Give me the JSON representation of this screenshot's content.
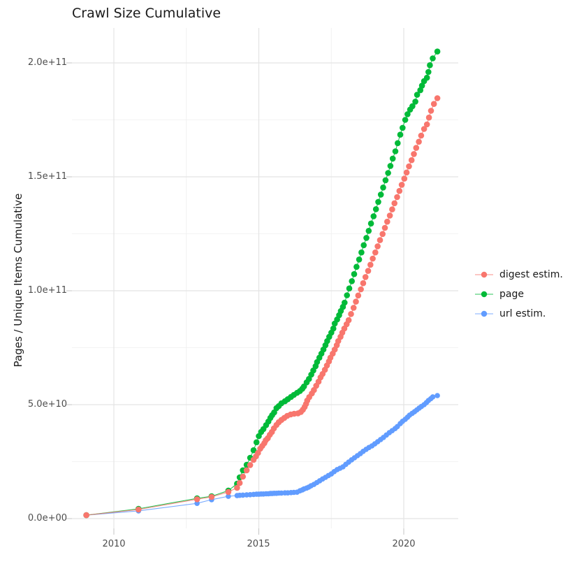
{
  "title": "Crawl Size Cumulative",
  "y_axis": {
    "title": "Pages / Unique Items Cumulative",
    "ticks": [
      "0.0e+00",
      "5.0e+10",
      "1.0e+11",
      "1.5e+11",
      "2.0e+11"
    ]
  },
  "x_axis": {
    "ticks": [
      "2010",
      "2015",
      "2020"
    ]
  },
  "legend": {
    "items": [
      {
        "label": "digest estim.",
        "color": "#F8766D"
      },
      {
        "label": "page",
        "color": "#00BA38"
      },
      {
        "label": "url estim.",
        "color": "#619CFF"
      }
    ]
  },
  "chart_data": {
    "type": "line",
    "title": "Crawl Size Cumulative",
    "xlabel": "",
    "ylabel": "Pages / Unique Items Cumulative",
    "x_ticks": [
      2010,
      2015,
      2020
    ],
    "y_ticks_labels": [
      "0.0e+00",
      "5.0e+10",
      "1.0e+11",
      "1.5e+11",
      "2.0e+11"
    ],
    "xlim": [
      2008.55,
      2021.9
    ],
    "ylim": [
      0,
      215000000000.0
    ],
    "grid": true,
    "legend_position": "right",
    "marker": "point-with-line",
    "value_unit": 10000000000,
    "series": [
      {
        "name": "digest estim.",
        "color": "#F8766D",
        "points": [
          [
            2009.05,
            0.15
          ],
          [
            2010.85,
            0.4
          ],
          [
            2012.87,
            0.85
          ],
          [
            2013.37,
            0.95
          ],
          [
            2013.95,
            1.17
          ],
          [
            2014.25,
            1.35
          ],
          [
            2014.34,
            1.56
          ],
          [
            2014.45,
            1.84
          ],
          [
            2014.58,
            2.12
          ],
          [
            2014.7,
            2.35
          ],
          [
            2014.82,
            2.58
          ],
          [
            2014.9,
            2.73
          ],
          [
            2014.97,
            2.88
          ],
          [
            2015.05,
            3.07
          ],
          [
            2015.12,
            3.19
          ],
          [
            2015.19,
            3.31
          ],
          [
            2015.24,
            3.44
          ],
          [
            2015.31,
            3.53
          ],
          [
            2015.38,
            3.68
          ],
          [
            2015.45,
            3.8
          ],
          [
            2015.52,
            3.96
          ],
          [
            2015.61,
            4.11
          ],
          [
            2015.69,
            4.23
          ],
          [
            2015.78,
            4.33
          ],
          [
            2015.88,
            4.42
          ],
          [
            2015.98,
            4.51
          ],
          [
            2016.1,
            4.57
          ],
          [
            2016.22,
            4.6
          ],
          [
            2016.35,
            4.62
          ],
          [
            2016.45,
            4.68
          ],
          [
            2016.52,
            4.78
          ],
          [
            2016.58,
            4.9
          ],
          [
            2016.63,
            5.03
          ],
          [
            2016.67,
            5.18
          ],
          [
            2016.74,
            5.33
          ],
          [
            2016.83,
            5.49
          ],
          [
            2016.9,
            5.64
          ],
          [
            2016.98,
            5.83
          ],
          [
            2017.06,
            6.01
          ],
          [
            2017.13,
            6.2
          ],
          [
            2017.2,
            6.35
          ],
          [
            2017.28,
            6.53
          ],
          [
            2017.35,
            6.72
          ],
          [
            2017.42,
            6.9
          ],
          [
            2017.47,
            7.06
          ],
          [
            2017.55,
            7.24
          ],
          [
            2017.62,
            7.42
          ],
          [
            2017.69,
            7.61
          ],
          [
            2017.74,
            7.79
          ],
          [
            2017.82,
            7.98
          ],
          [
            2017.88,
            8.16
          ],
          [
            2017.95,
            8.34
          ],
          [
            2018.03,
            8.53
          ],
          [
            2018.1,
            8.71
          ],
          [
            2018.18,
            8.98
          ],
          [
            2018.27,
            9.25
          ],
          [
            2018.35,
            9.52
          ],
          [
            2018.43,
            9.79
          ],
          [
            2018.52,
            10.06
          ],
          [
            2018.6,
            10.33
          ],
          [
            2018.68,
            10.6
          ],
          [
            2018.77,
            10.87
          ],
          [
            2018.85,
            11.14
          ],
          [
            2018.93,
            11.41
          ],
          [
            2019.02,
            11.68
          ],
          [
            2019.1,
            11.95
          ],
          [
            2019.18,
            12.22
          ],
          [
            2019.27,
            12.49
          ],
          [
            2019.35,
            12.76
          ],
          [
            2019.43,
            13.03
          ],
          [
            2019.52,
            13.3
          ],
          [
            2019.6,
            13.57
          ],
          [
            2019.68,
            13.84
          ],
          [
            2019.77,
            14.11
          ],
          [
            2019.85,
            14.38
          ],
          [
            2019.93,
            14.65
          ],
          [
            2020.02,
            14.92
          ],
          [
            2020.1,
            15.19
          ],
          [
            2020.18,
            15.46
          ],
          [
            2020.27,
            15.73
          ],
          [
            2020.35,
            16.0
          ],
          [
            2020.43,
            16.27
          ],
          [
            2020.52,
            16.54
          ],
          [
            2020.6,
            16.81
          ],
          [
            2020.7,
            17.1
          ],
          [
            2020.8,
            17.3
          ],
          [
            2020.87,
            17.6
          ],
          [
            2020.94,
            17.9
          ],
          [
            2021.04,
            18.2
          ],
          [
            2021.16,
            18.45
          ]
        ]
      },
      {
        "name": "page",
        "color": "#00BA38",
        "points": [
          [
            2009.05,
            0.15
          ],
          [
            2010.85,
            0.43
          ],
          [
            2012.87,
            0.89
          ],
          [
            2013.37,
            0.98
          ],
          [
            2013.95,
            1.23
          ],
          [
            2014.25,
            1.53
          ],
          [
            2014.34,
            1.81
          ],
          [
            2014.45,
            2.12
          ],
          [
            2014.58,
            2.36
          ],
          [
            2014.7,
            2.67
          ],
          [
            2014.82,
            3.0
          ],
          [
            2014.92,
            3.35
          ],
          [
            2015.0,
            3.62
          ],
          [
            2015.08,
            3.8
          ],
          [
            2015.16,
            3.93
          ],
          [
            2015.25,
            4.1
          ],
          [
            2015.33,
            4.26
          ],
          [
            2015.4,
            4.42
          ],
          [
            2015.46,
            4.54
          ],
          [
            2015.53,
            4.66
          ],
          [
            2015.61,
            4.85
          ],
          [
            2015.69,
            4.94
          ],
          [
            2015.78,
            5.06
          ],
          [
            2015.9,
            5.15
          ],
          [
            2016.0,
            5.24
          ],
          [
            2016.11,
            5.34
          ],
          [
            2016.21,
            5.43
          ],
          [
            2016.32,
            5.52
          ],
          [
            2016.42,
            5.6
          ],
          [
            2016.5,
            5.7
          ],
          [
            2016.56,
            5.8
          ],
          [
            2016.65,
            5.98
          ],
          [
            2016.73,
            6.13
          ],
          [
            2016.81,
            6.32
          ],
          [
            2016.88,
            6.5
          ],
          [
            2016.96,
            6.69
          ],
          [
            2017.01,
            6.87
          ],
          [
            2017.09,
            7.06
          ],
          [
            2017.16,
            7.24
          ],
          [
            2017.23,
            7.42
          ],
          [
            2017.3,
            7.61
          ],
          [
            2017.36,
            7.79
          ],
          [
            2017.43,
            7.98
          ],
          [
            2017.5,
            8.16
          ],
          [
            2017.57,
            8.34
          ],
          [
            2017.62,
            8.56
          ],
          [
            2017.7,
            8.74
          ],
          [
            2017.77,
            8.93
          ],
          [
            2017.83,
            9.11
          ],
          [
            2017.9,
            9.29
          ],
          [
            2017.96,
            9.48
          ],
          [
            2018.04,
            9.8
          ],
          [
            2018.12,
            10.1
          ],
          [
            2018.21,
            10.42
          ],
          [
            2018.29,
            10.73
          ],
          [
            2018.37,
            11.05
          ],
          [
            2018.46,
            11.37
          ],
          [
            2018.54,
            11.68
          ],
          [
            2018.62,
            12.0
          ],
          [
            2018.71,
            12.32
          ],
          [
            2018.79,
            12.63
          ],
          [
            2018.87,
            12.95
          ],
          [
            2018.96,
            13.27
          ],
          [
            2019.04,
            13.58
          ],
          [
            2019.12,
            13.9
          ],
          [
            2019.21,
            14.22
          ],
          [
            2019.29,
            14.53
          ],
          [
            2019.37,
            14.85
          ],
          [
            2019.46,
            15.17
          ],
          [
            2019.54,
            15.48
          ],
          [
            2019.62,
            15.8
          ],
          [
            2019.71,
            16.12
          ],
          [
            2019.79,
            16.48
          ],
          [
            2019.88,
            16.85
          ],
          [
            2019.96,
            17.15
          ],
          [
            2020.05,
            17.5
          ],
          [
            2020.13,
            17.75
          ],
          [
            2020.22,
            17.95
          ],
          [
            2020.3,
            18.1
          ],
          [
            2020.4,
            18.3
          ],
          [
            2020.46,
            18.6
          ],
          [
            2020.57,
            18.8
          ],
          [
            2020.63,
            19.0
          ],
          [
            2020.7,
            19.2
          ],
          [
            2020.8,
            19.35
          ],
          [
            2020.85,
            19.6
          ],
          [
            2020.9,
            19.9
          ],
          [
            2021.0,
            20.2
          ],
          [
            2021.16,
            20.5
          ]
        ]
      },
      {
        "name": "url estim.",
        "color": "#619CFF",
        "points": [
          [
            2009.05,
            0.15
          ],
          [
            2010.85,
            0.34
          ],
          [
            2012.87,
            0.67
          ],
          [
            2013.37,
            0.83
          ],
          [
            2013.95,
            0.98
          ],
          [
            2014.25,
            1.01
          ],
          [
            2014.34,
            1.02
          ],
          [
            2014.45,
            1.03
          ],
          [
            2014.58,
            1.04
          ],
          [
            2014.7,
            1.05
          ],
          [
            2014.82,
            1.06
          ],
          [
            2014.92,
            1.07
          ],
          [
            2015.0,
            1.07
          ],
          [
            2015.08,
            1.08
          ],
          [
            2015.16,
            1.08
          ],
          [
            2015.25,
            1.09
          ],
          [
            2015.33,
            1.09
          ],
          [
            2015.4,
            1.1
          ],
          [
            2015.46,
            1.1
          ],
          [
            2015.53,
            1.11
          ],
          [
            2015.61,
            1.11
          ],
          [
            2015.69,
            1.12
          ],
          [
            2015.78,
            1.12
          ],
          [
            2015.9,
            1.13
          ],
          [
            2016.0,
            1.13
          ],
          [
            2016.11,
            1.14
          ],
          [
            2016.21,
            1.15
          ],
          [
            2016.32,
            1.16
          ],
          [
            2016.42,
            1.22
          ],
          [
            2016.5,
            1.26
          ],
          [
            2016.56,
            1.3
          ],
          [
            2016.65,
            1.34
          ],
          [
            2016.72,
            1.38
          ],
          [
            2016.8,
            1.44
          ],
          [
            2016.9,
            1.5
          ],
          [
            2017.0,
            1.58
          ],
          [
            2017.1,
            1.66
          ],
          [
            2017.2,
            1.74
          ],
          [
            2017.3,
            1.81
          ],
          [
            2017.4,
            1.89
          ],
          [
            2017.5,
            1.96
          ],
          [
            2017.6,
            2.06
          ],
          [
            2017.7,
            2.15
          ],
          [
            2017.8,
            2.21
          ],
          [
            2017.9,
            2.27
          ],
          [
            2018.0,
            2.38
          ],
          [
            2018.1,
            2.48
          ],
          [
            2018.2,
            2.58
          ],
          [
            2018.3,
            2.67
          ],
          [
            2018.4,
            2.76
          ],
          [
            2018.5,
            2.85
          ],
          [
            2018.6,
            2.95
          ],
          [
            2018.7,
            3.04
          ],
          [
            2018.8,
            3.12
          ],
          [
            2018.9,
            3.19
          ],
          [
            2019.0,
            3.28
          ],
          [
            2019.1,
            3.37
          ],
          [
            2019.2,
            3.47
          ],
          [
            2019.3,
            3.56
          ],
          [
            2019.4,
            3.67
          ],
          [
            2019.5,
            3.77
          ],
          [
            2019.6,
            3.86
          ],
          [
            2019.7,
            3.95
          ],
          [
            2019.78,
            4.04
          ],
          [
            2019.88,
            4.17
          ],
          [
            2019.96,
            4.27
          ],
          [
            2020.05,
            4.36
          ],
          [
            2020.13,
            4.45
          ],
          [
            2020.2,
            4.54
          ],
          [
            2020.29,
            4.62
          ],
          [
            2020.37,
            4.69
          ],
          [
            2020.45,
            4.77
          ],
          [
            2020.53,
            4.85
          ],
          [
            2020.61,
            4.92
          ],
          [
            2020.7,
            5.0
          ],
          [
            2020.78,
            5.09
          ],
          [
            2020.85,
            5.18
          ],
          [
            2020.93,
            5.26
          ],
          [
            2021.0,
            5.34
          ],
          [
            2021.16,
            5.4
          ]
        ]
      }
    ]
  }
}
